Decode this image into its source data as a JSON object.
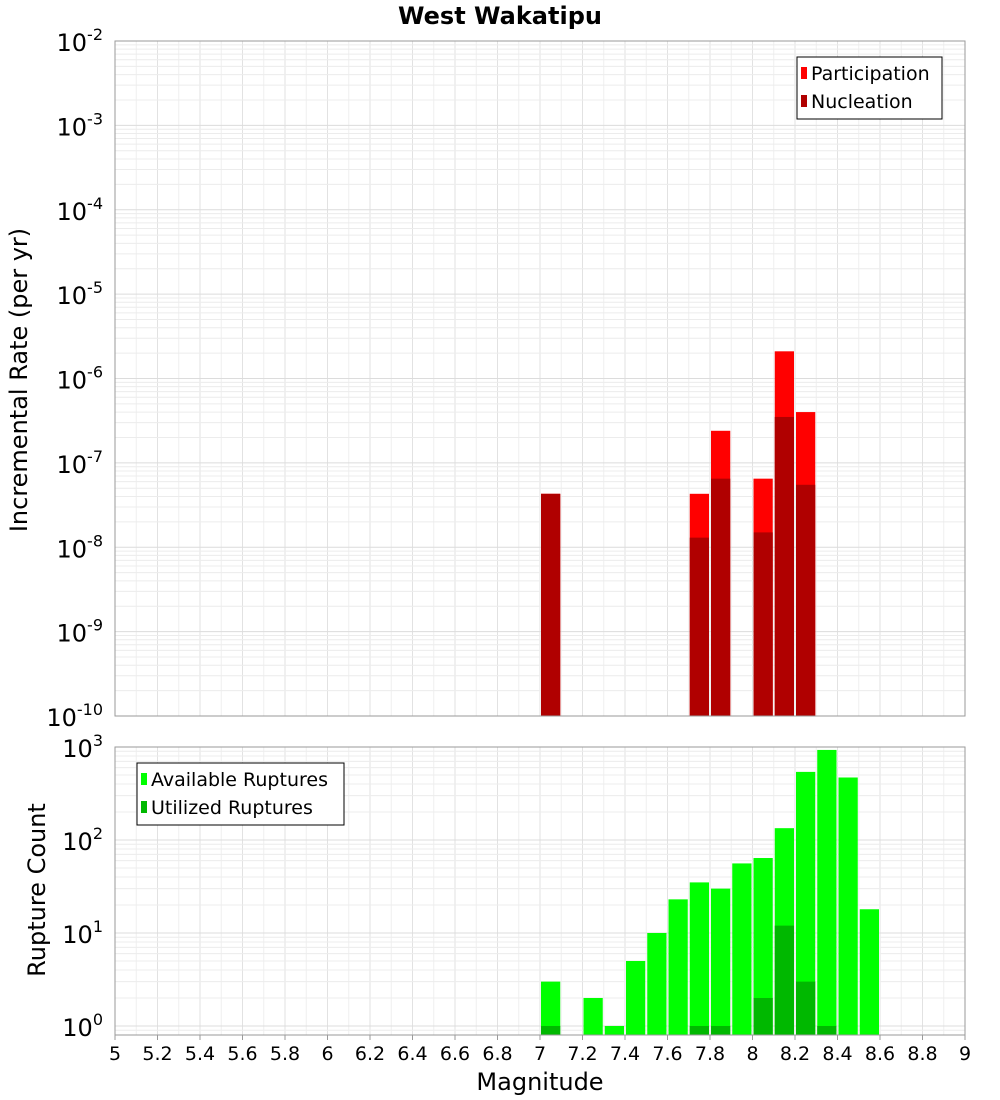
{
  "chart_data": [
    {
      "panel": "top",
      "type": "bar",
      "title": "West Wakatipu",
      "xlabel": "",
      "ylabel": "Incremental Rate (per yr)",
      "y_scale": "log",
      "xlim": [
        5,
        9
      ],
      "ylim": [
        1e-10,
        0.01
      ],
      "y_tick_exponents": [
        "-10",
        "-9",
        "-8",
        "-7",
        "-6",
        "-5",
        "-4",
        "-3",
        "-2"
      ],
      "y_tick_base": "10",
      "grid": true,
      "legend_position": "top-right",
      "bar_width": 0.1,
      "series": [
        {
          "name": "Participation",
          "color": "#ff0000",
          "x": [
            7.05,
            7.75,
            7.85,
            8.05,
            8.15,
            8.25
          ],
          "values": [
            4.3e-08,
            4.3e-08,
            2.4e-07,
            6.5e-08,
            2.1e-06,
            4e-07
          ]
        },
        {
          "name": "Nucleation",
          "color": "#b00000",
          "x": [
            7.05,
            7.75,
            7.85,
            8.05,
            8.15,
            8.25
          ],
          "values": [
            4.3e-08,
            1.3e-08,
            6.5e-08,
            1.5e-08,
            3.5e-07,
            5.5e-08
          ]
        }
      ]
    },
    {
      "panel": "bottom",
      "type": "bar",
      "title": "",
      "xlabel": "Magnitude",
      "ylabel": "Rupture Count",
      "y_scale": "log",
      "xlim": [
        5,
        9
      ],
      "ylim": [
        0.8,
        1000
      ],
      "y_tick_exponents": [
        "0",
        "1",
        "2",
        "3"
      ],
      "y_tick_base": "10",
      "x_ticks": [
        "5",
        "5.2",
        "5.4",
        "5.6",
        "5.8",
        "6",
        "6.2",
        "6.4",
        "6.6",
        "6.8",
        "7",
        "7.2",
        "7.4",
        "7.6",
        "7.8",
        "8",
        "8.2",
        "8.4",
        "8.6",
        "8.8",
        "9"
      ],
      "grid": true,
      "legend_position": "top-left",
      "bar_width": 0.1,
      "series": [
        {
          "name": "Available Ruptures",
          "color": "#00ff00",
          "x": [
            7.05,
            7.25,
            7.35,
            7.45,
            7.55,
            7.65,
            7.75,
            7.85,
            7.95,
            8.05,
            8.15,
            8.25,
            8.35,
            8.45,
            8.55
          ],
          "values": [
            3,
            2,
            1,
            5,
            10,
            23,
            35,
            30,
            56,
            64,
            134,
            540,
            930,
            470,
            18
          ]
        },
        {
          "name": "Utilized Ruptures",
          "color": "#00b800",
          "x": [
            7.05,
            7.75,
            7.85,
            8.05,
            8.15,
            8.25,
            8.35
          ],
          "values": [
            1,
            1,
            1,
            2,
            12,
            3,
            1
          ]
        }
      ]
    }
  ]
}
